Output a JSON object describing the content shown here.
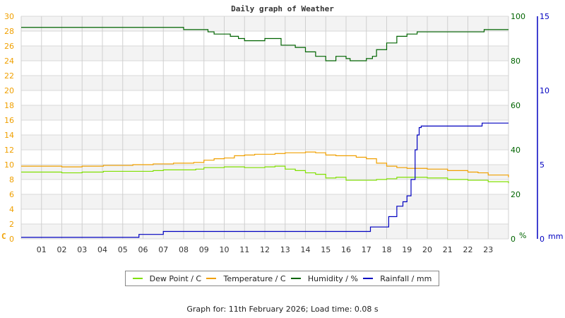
{
  "chart_data": {
    "type": "line",
    "title": "Daily graph of Weather",
    "xlabel": "",
    "x_ticks": [
      "01",
      "02",
      "03",
      "04",
      "05",
      "06",
      "07",
      "08",
      "09",
      "10",
      "11",
      "12",
      "13",
      "14",
      "15",
      "16",
      "17",
      "18",
      "19",
      "20",
      "21",
      "22",
      "23"
    ],
    "x_range_hours": [
      0,
      24
    ],
    "axes": {
      "left": {
        "label": "C",
        "ticks": [
          0,
          2,
          4,
          6,
          8,
          10,
          12,
          14,
          16,
          18,
          20,
          22,
          24,
          26,
          28,
          30
        ],
        "range": [
          0,
          30
        ],
        "color": "#f0a000"
      },
      "right1": {
        "label": "%",
        "ticks": [
          0,
          20,
          40,
          60,
          80,
          100
        ],
        "range": [
          0,
          100
        ],
        "color": "#006400"
      },
      "right2": {
        "label": "mm",
        "ticks": [
          0,
          5,
          10,
          15
        ],
        "range": [
          0,
          15
        ],
        "color": "#0000c0"
      }
    },
    "grid": true,
    "legend_position": "bottom",
    "series": [
      {
        "name": "Dew Point / C",
        "color": "#80e000",
        "axis": "left",
        "points": [
          [
            0,
            9.0
          ],
          [
            1.7,
            9.0
          ],
          [
            2.0,
            8.9
          ],
          [
            2.7,
            8.9
          ],
          [
            3,
            9.0
          ],
          [
            4,
            9.0
          ],
          [
            4.05,
            9.1
          ],
          [
            5.2,
            9.1
          ],
          [
            6.5,
            9.2
          ],
          [
            7,
            9.3
          ],
          [
            8,
            9.3
          ],
          [
            8.1,
            9.3
          ],
          [
            8.6,
            9.4
          ],
          [
            9.0,
            9.6
          ],
          [
            9.1,
            9.6
          ],
          [
            10,
            9.7
          ],
          [
            11,
            9.6
          ],
          [
            12,
            9.7
          ],
          [
            12.5,
            9.8
          ],
          [
            13,
            9.4
          ],
          [
            13.5,
            9.2
          ],
          [
            14,
            8.9
          ],
          [
            14.5,
            8.7
          ],
          [
            15,
            8.2
          ],
          [
            15.5,
            8.3
          ],
          [
            16,
            7.9
          ],
          [
            17,
            7.9
          ],
          [
            17.5,
            8.0
          ],
          [
            18,
            8.1
          ],
          [
            18.5,
            8.3
          ],
          [
            19,
            8.3
          ],
          [
            19.5,
            8.3
          ],
          [
            20,
            8.2
          ],
          [
            21,
            8.0
          ],
          [
            22,
            7.9
          ],
          [
            22.6,
            7.9
          ],
          [
            23,
            7.7
          ],
          [
            24,
            7.5
          ]
        ]
      },
      {
        "name": "Temperature / C",
        "color": "#f0a000",
        "axis": "left",
        "points": [
          [
            0,
            9.8
          ],
          [
            1.8,
            9.8
          ],
          [
            2.0,
            9.7
          ],
          [
            2.7,
            9.7
          ],
          [
            3,
            9.8
          ],
          [
            4,
            9.8
          ],
          [
            4.05,
            9.9
          ],
          [
            5,
            9.9
          ],
          [
            5.5,
            10.0
          ],
          [
            6.5,
            10.1
          ],
          [
            7,
            10.1
          ],
          [
            7.5,
            10.2
          ],
          [
            8,
            10.2
          ],
          [
            8.5,
            10.3
          ],
          [
            9,
            10.6
          ],
          [
            9.5,
            10.8
          ],
          [
            10,
            10.9
          ],
          [
            10.5,
            11.2
          ],
          [
            11,
            11.3
          ],
          [
            11.5,
            11.4
          ],
          [
            12,
            11.4
          ],
          [
            12.5,
            11.5
          ],
          [
            13,
            11.6
          ],
          [
            13.5,
            11.6
          ],
          [
            14,
            11.7
          ],
          [
            14.5,
            11.6
          ],
          [
            15,
            11.3
          ],
          [
            15.5,
            11.2
          ],
          [
            16,
            11.2
          ],
          [
            16.5,
            11.0
          ],
          [
            17,
            10.8
          ],
          [
            17.5,
            10.2
          ],
          [
            18,
            9.8
          ],
          [
            18.5,
            9.6
          ],
          [
            19,
            9.5
          ],
          [
            19.5,
            9.5
          ],
          [
            20,
            9.4
          ],
          [
            21,
            9.2
          ],
          [
            22,
            9.0
          ],
          [
            22.5,
            8.9
          ],
          [
            23,
            8.6
          ],
          [
            24,
            8.3
          ]
        ]
      },
      {
        "name": "Humidity / %",
        "color": "#006400",
        "axis": "right1",
        "points": [
          [
            0,
            95
          ],
          [
            7.9,
            95
          ],
          [
            8.0,
            94
          ],
          [
            9.0,
            94
          ],
          [
            9.2,
            93
          ],
          [
            9.5,
            92
          ],
          [
            10,
            92
          ],
          [
            10.3,
            91
          ],
          [
            10.7,
            90
          ],
          [
            11,
            89
          ],
          [
            11.5,
            89
          ],
          [
            12,
            90
          ],
          [
            12.5,
            90
          ],
          [
            12.8,
            87
          ],
          [
            13.5,
            86
          ],
          [
            14,
            84
          ],
          [
            14.5,
            82
          ],
          [
            15,
            80
          ],
          [
            15.5,
            82
          ],
          [
            16,
            81
          ],
          [
            16.2,
            80
          ],
          [
            17,
            81
          ],
          [
            17.3,
            82
          ],
          [
            17.5,
            85
          ],
          [
            18,
            88
          ],
          [
            18.5,
            91
          ],
          [
            19,
            92
          ],
          [
            19.5,
            93
          ],
          [
            20,
            93
          ],
          [
            22.5,
            93
          ],
          [
            22.8,
            94
          ],
          [
            24,
            94
          ]
        ]
      },
      {
        "name": "Rainfall / mm",
        "color": "#0000c0",
        "axis": "right2",
        "points": [
          [
            0,
            0.1
          ],
          [
            5.8,
            0.1
          ],
          [
            5.8,
            0.3
          ],
          [
            7.0,
            0.3
          ],
          [
            7.0,
            0.5
          ],
          [
            17.1,
            0.5
          ],
          [
            17.2,
            0.8
          ],
          [
            17.9,
            0.8
          ],
          [
            18.1,
            1.5
          ],
          [
            18.5,
            2.2
          ],
          [
            18.8,
            2.5
          ],
          [
            19.0,
            2.9
          ],
          [
            19.2,
            4.0
          ],
          [
            19.4,
            6.0
          ],
          [
            19.5,
            7.0
          ],
          [
            19.6,
            7.5
          ],
          [
            19.7,
            7.6
          ],
          [
            22.6,
            7.6
          ],
          [
            22.7,
            7.8
          ],
          [
            24,
            7.8
          ]
        ]
      }
    ]
  },
  "legend": {
    "items": [
      {
        "label": "Dew Point / C",
        "color": "#80e000"
      },
      {
        "label": "Temperature / C",
        "color": "#f0a000"
      },
      {
        "label": "Humidity / %",
        "color": "#006400"
      },
      {
        "label": "Rainfall / mm",
        "color": "#0000c0"
      }
    ]
  },
  "footer": {
    "text": "Graph for: 11th February 2026; Load time: 0.08 s"
  }
}
